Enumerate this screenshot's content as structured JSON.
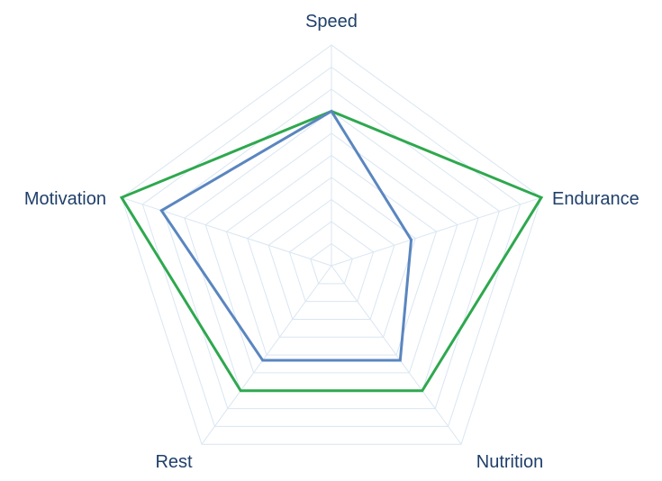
{
  "chart_data": {
    "type": "radar",
    "axes": [
      "Speed",
      "Endurance",
      "Nutrition",
      "Rest",
      "Motivation"
    ],
    "range": [
      0,
      10
    ],
    "grid_levels": 10,
    "grid": true,
    "legend": "none",
    "series": [
      {
        "color": "#2ea84e",
        "values": [
          7.0,
          10.0,
          7.0,
          7.0,
          10.0
        ]
      },
      {
        "color": "#5a86c0",
        "values": [
          7.0,
          3.8,
          5.3,
          5.3,
          8.1
        ]
      }
    ],
    "colors": {
      "label": "#1f3f6b",
      "grid": "#d9e6f2"
    }
  }
}
